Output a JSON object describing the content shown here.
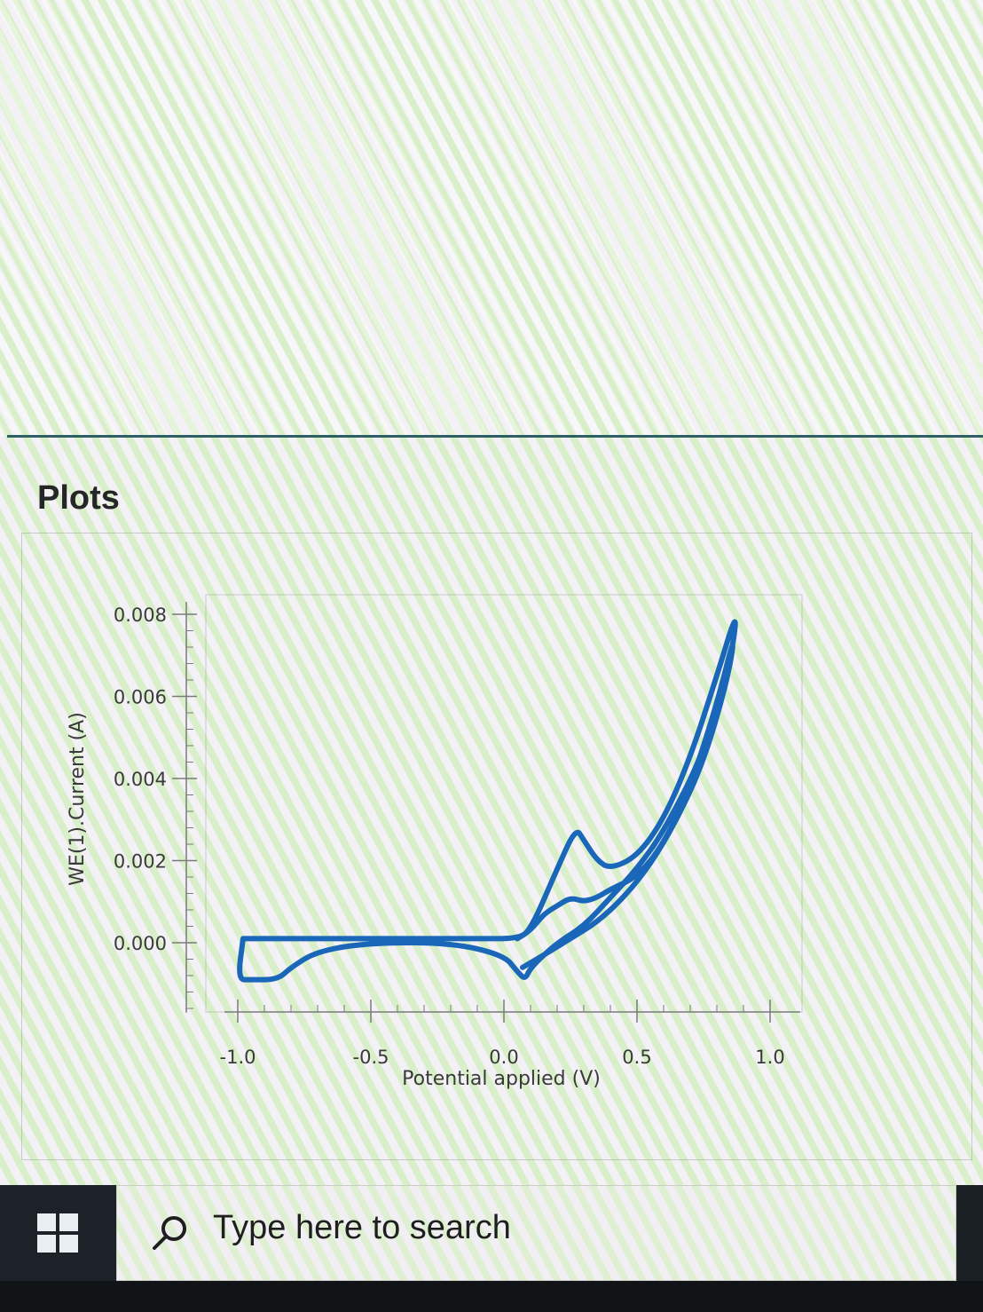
{
  "section": {
    "title": "Plots"
  },
  "taskbar": {
    "search_placeholder": "Type here to search",
    "start_icon": "windows-logo-icon",
    "search_icon": "magnifier-icon"
  },
  "colors": {
    "trace": "#1a66b8",
    "axis": "#7a7a7a",
    "divider": "#2f5f63",
    "taskbar": "#1e2328"
  },
  "chart_data": {
    "type": "line",
    "title": "",
    "xlabel": "Potential applied (V)",
    "ylabel": "WE(1).Current (A)",
    "xlim": [
      -1.05,
      1.0
    ],
    "ylim": [
      -0.0017,
      0.0083
    ],
    "x_ticks": [
      "-1.0",
      "-0.5",
      "0.0",
      "0.5",
      "1.0"
    ],
    "x_tick_values": [
      -1.0,
      -0.5,
      0.0,
      0.5,
      1.0
    ],
    "y_ticks": [
      "0.008",
      "0.006",
      "0.004",
      "0.002",
      "0.000"
    ],
    "y_tick_values": [
      0.008,
      0.006,
      0.004,
      0.002,
      0.0
    ],
    "grid": false,
    "legend": "none",
    "series": [
      {
        "x": [
          -0.98,
          -0.9,
          -0.7,
          -0.5,
          -0.3,
          -0.1,
          0.05,
          0.1,
          0.2,
          0.27,
          0.3,
          0.35,
          0.4,
          0.5,
          0.6,
          0.7,
          0.8,
          0.88,
          0.85,
          0.75,
          0.6,
          0.5,
          0.4,
          0.3,
          0.2,
          0.1,
          0.08,
          0.05,
          0.0,
          -0.2,
          -0.5,
          -0.7,
          -0.8,
          -0.85,
          -0.95,
          -1.0,
          -0.98
        ],
        "y": [
          0.0001,
          0.0001,
          0.0001,
          0.0001,
          0.0001,
          0.0001,
          0.0001,
          0.0003,
          0.0018,
          0.0028,
          0.0025,
          0.002,
          0.0018,
          0.0021,
          0.003,
          0.0045,
          0.0065,
          0.0082,
          0.0068,
          0.0046,
          0.0027,
          0.0018,
          0.0011,
          0.0004,
          0.0,
          -0.0006,
          -0.0009,
          -0.0007,
          -0.0003,
          0.0,
          0.0,
          -0.0002,
          -0.0006,
          -0.0009,
          -0.0009,
          -0.0009,
          0.0001
        ]
      },
      {
        "x": [
          0.05,
          0.1,
          0.15,
          0.2,
          0.25,
          0.3,
          0.35,
          0.4,
          0.5,
          0.6,
          0.7,
          0.8,
          0.87,
          0.84,
          0.75,
          0.65,
          0.55,
          0.45,
          0.35,
          0.25,
          0.15,
          0.07
        ],
        "y": [
          0.0001,
          0.0003,
          0.0007,
          0.0009,
          0.0011,
          0.001,
          0.0011,
          0.0013,
          0.0016,
          0.0024,
          0.0038,
          0.0058,
          0.0076,
          0.0064,
          0.0044,
          0.003,
          0.0019,
          0.0011,
          0.0005,
          0.0001,
          -0.0003,
          -0.0006
        ]
      }
    ]
  }
}
